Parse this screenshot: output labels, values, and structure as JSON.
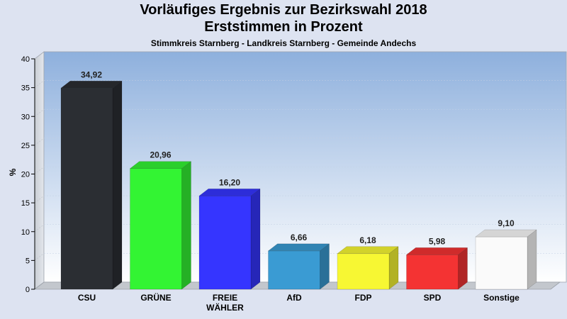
{
  "chart_data": {
    "type": "bar",
    "title": "Vorläufiges Ergebnis zur Bezirkswahl 2018",
    "subtitle": "Erststimmen in Prozent",
    "subsubtitle": "Stimmkreis Starnberg - Landkreis Starnberg - Gemeinde Andechs",
    "ylabel": "%",
    "xlabel": "",
    "ylim": [
      0,
      40
    ],
    "yticks": [
      0,
      5,
      10,
      15,
      20,
      25,
      30,
      35,
      40
    ],
    "grid": true,
    "categories": [
      [
        "CSU"
      ],
      [
        "GRÜNE"
      ],
      [
        "FREIE",
        "WÄHLER"
      ],
      [
        "AfD"
      ],
      [
        "FDP"
      ],
      [
        "SPD"
      ],
      [
        "Sonstige"
      ]
    ],
    "values": [
      34.92,
      20.96,
      16.2,
      6.66,
      6.18,
      5.98,
      9.1
    ],
    "value_labels": [
      "34,92",
      "20,96",
      "16,20",
      "6,66",
      "6,18",
      "5,98",
      "9,10"
    ],
    "colors": [
      "#2b2e33",
      "#33f433",
      "#3535ff",
      "#3a9bd3",
      "#f7f733",
      "#f43333",
      "#fafafa"
    ]
  }
}
